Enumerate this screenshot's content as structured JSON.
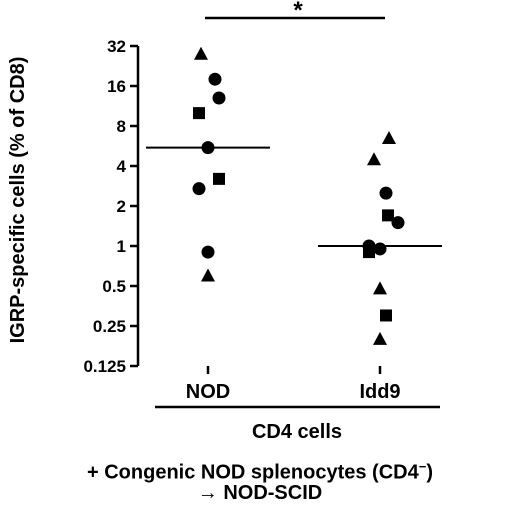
{
  "chart_data": {
    "type": "scatter",
    "ylabel": "IGRP-specific cells (% of CD8)",
    "yscale": "log2",
    "ylim": [
      0.125,
      32
    ],
    "yticks": [
      {
        "value": 0.125,
        "label": "0.125"
      },
      {
        "value": 0.25,
        "label": "0.25"
      },
      {
        "value": 0.5,
        "label": "0.5"
      },
      {
        "value": 1,
        "label": "1"
      },
      {
        "value": 2,
        "label": "2"
      },
      {
        "value": 4,
        "label": "4"
      },
      {
        "value": 8,
        "label": "8"
      },
      {
        "value": 16,
        "label": "16"
      },
      {
        "value": 32,
        "label": "32"
      }
    ],
    "categories": [
      "NOD",
      "Idd9"
    ],
    "group_label": "CD4 cells",
    "significance": "*",
    "points": [
      {
        "category": "NOD",
        "marker": "triangle",
        "value": 28
      },
      {
        "category": "NOD",
        "marker": "circle",
        "value": 18
      },
      {
        "category": "NOD",
        "marker": "circle",
        "value": 13
      },
      {
        "category": "NOD",
        "marker": "square",
        "value": 10
      },
      {
        "category": "NOD",
        "marker": "circle",
        "value": 5.5
      },
      {
        "category": "NOD",
        "marker": "square",
        "value": 3.2
      },
      {
        "category": "NOD",
        "marker": "circle",
        "value": 2.7
      },
      {
        "category": "NOD",
        "marker": "circle",
        "value": 0.9
      },
      {
        "category": "NOD",
        "marker": "triangle",
        "value": 0.6
      },
      {
        "category": "Idd9",
        "marker": "triangle",
        "value": 6.5
      },
      {
        "category": "Idd9",
        "marker": "triangle",
        "value": 4.5
      },
      {
        "category": "Idd9",
        "marker": "circle",
        "value": 2.5
      },
      {
        "category": "Idd9",
        "marker": "square",
        "value": 1.7
      },
      {
        "category": "Idd9",
        "marker": "circle",
        "value": 1.5
      },
      {
        "category": "Idd9",
        "marker": "circle",
        "value": 1.0
      },
      {
        "category": "Idd9",
        "marker": "circle",
        "value": 0.95
      },
      {
        "category": "Idd9",
        "marker": "square",
        "value": 0.9
      },
      {
        "category": "Idd9",
        "marker": "triangle",
        "value": 0.48
      },
      {
        "category": "Idd9",
        "marker": "square",
        "value": 0.3
      },
      {
        "category": "Idd9",
        "marker": "triangle",
        "value": 0.2
      }
    ],
    "medians": [
      {
        "category": "NOD",
        "value": 5.5
      },
      {
        "category": "Idd9",
        "value": 1.0
      }
    ]
  },
  "footer": {
    "line1_main": "+ Congenic NOD splenocytes (CD4",
    "line1_sup": "−",
    "line1_end": ")",
    "line2": "→ NOD-SCID"
  }
}
